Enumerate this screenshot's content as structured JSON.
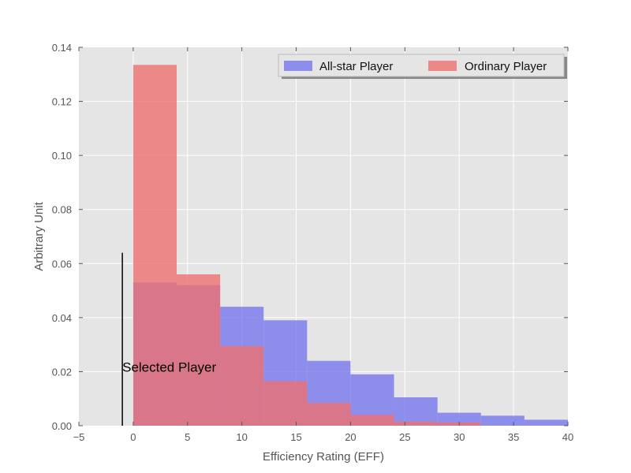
{
  "chart_data": {
    "type": "bar",
    "title": "",
    "xlabel": "Efficiency Rating (EFF)",
    "ylabel": "Arbitrary Unit",
    "xlim": [
      -5,
      40
    ],
    "ylim": [
      0,
      0.14
    ],
    "xticks": [
      -5,
      0,
      5,
      10,
      15,
      20,
      25,
      30,
      35,
      40
    ],
    "xtick_labels": [
      "−5",
      "0",
      "5",
      "10",
      "15",
      "20",
      "25",
      "30",
      "35",
      "40"
    ],
    "yticks": [
      0,
      0.02,
      0.04,
      0.06,
      0.08,
      0.1,
      0.12,
      0.14
    ],
    "ytick_labels": [
      "0.00",
      "0.02",
      "0.04",
      "0.06",
      "0.08",
      "0.10",
      "0.12",
      "0.14"
    ],
    "grid": true,
    "legend_position": "top-right",
    "series": [
      {
        "name": "All-star Player",
        "color": "#7777ee",
        "bin_edges": [
          0,
          4,
          8,
          12,
          16,
          20,
          24,
          28,
          32,
          36,
          40
        ],
        "values": [
          0.053,
          0.052,
          0.044,
          0.039,
          0.024,
          0.019,
          0.0105,
          0.0048,
          0.0037,
          0.0022
        ]
      },
      {
        "name": "Ordinary Player",
        "color": "#ee7070",
        "bin_edges": [
          0,
          4,
          8,
          12,
          16,
          20,
          24,
          28,
          32
        ],
        "values": [
          0.1335,
          0.056,
          0.0295,
          0.0165,
          0.0085,
          0.004,
          0.0015,
          0.0012
        ]
      }
    ],
    "annotation": {
      "text": "Selected Player",
      "line_x": -1,
      "line_ymax": 0.064,
      "text_x": -1,
      "text_y": 0.02
    }
  }
}
